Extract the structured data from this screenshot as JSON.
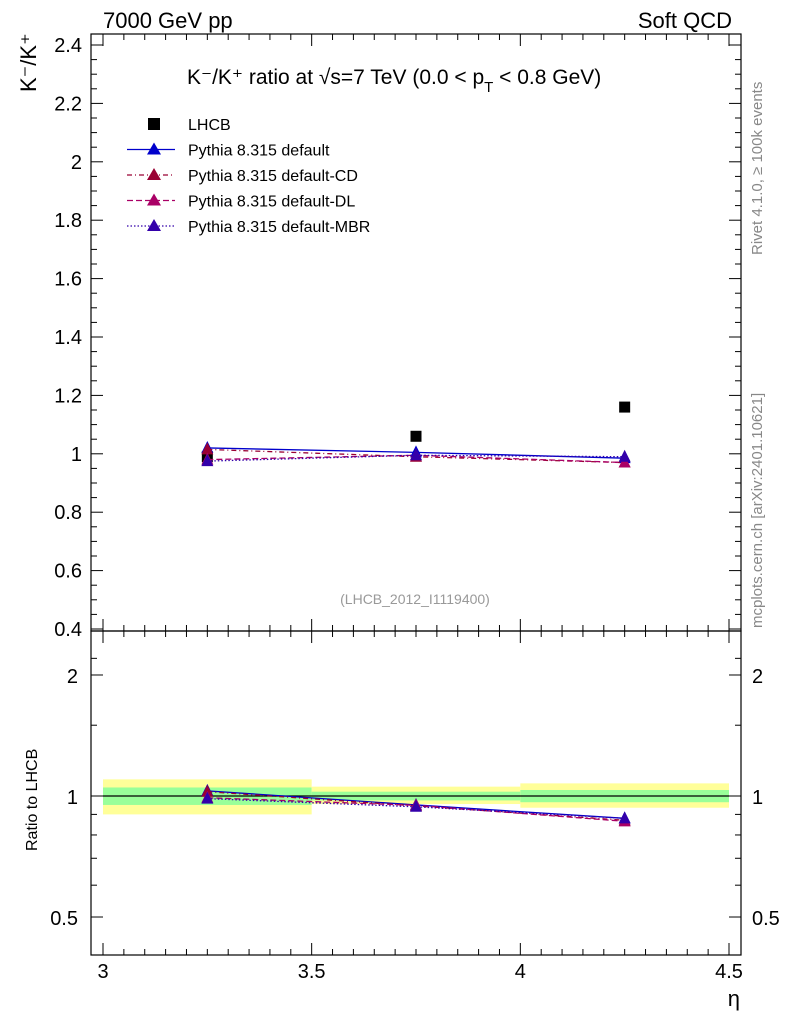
{
  "header": {
    "left_label": "7000 GeV pp",
    "right_label": "Soft QCD"
  },
  "side_labels": {
    "rivet": "Rivet 4.1.0, ≥ 100k events",
    "mcplots": "mcplots.cern.ch [arXiv:2401.10621]"
  },
  "colors": {
    "data": "#000000",
    "default": "#0000cc",
    "default_cd": "#990033",
    "default_dl": "#aa0066",
    "default_mbr": "#3300aa",
    "band_inner": "#99ff99",
    "band_outer": "#ffff99"
  },
  "chart_data": [
    {
      "type": "scatter",
      "title": "K⁻/K⁺ ratio at √s=7 TeV (0.0 < p_T < 0.8 GeV)",
      "title_parts": {
        "main": "K⁻/K⁺ ratio at √s=7 TeV (0.0 < p",
        "sub": "T",
        "end": " < 0.8 GeV)"
      },
      "ylabel": "K⁻/K⁺",
      "xlabel": "η",
      "xlim": [
        3.0,
        4.5
      ],
      "ylim": [
        0.4,
        2.45
      ],
      "y_ticks": [
        0.4,
        0.6,
        0.8,
        1,
        1.2,
        1.4,
        1.6,
        1.8,
        2,
        2.2,
        2.4
      ],
      "y_tick_labels": [
        "0.4",
        "0.6",
        "0.8",
        "1",
        "1.2",
        "1.4",
        "1.6",
        "1.8",
        "2",
        "2.2",
        "2.4"
      ],
      "watermark": "(LHCB_2012_I1119400)",
      "legend": [
        {
          "key": "data",
          "label": "LHCB"
        },
        {
          "key": "default",
          "label": "Pythia 8.315 default"
        },
        {
          "key": "default_cd",
          "label": "Pythia 8.315 default-CD"
        },
        {
          "key": "default_dl",
          "label": "Pythia 8.315 default-DL"
        },
        {
          "key": "default_mbr",
          "label": "Pythia 8.315 default-MBR"
        }
      ],
      "x": [
        3.25,
        3.75,
        4.25
      ],
      "series": [
        {
          "key": "data",
          "name": "LHCB",
          "style": "points",
          "values": [
            0.99,
            1.06,
            1.16
          ]
        },
        {
          "key": "default",
          "name": "Pythia 8.315 default",
          "style": "solid",
          "values": [
            1.02,
            1.005,
            0.985
          ],
          "errors": [
            0.02,
            0.015,
            0.02
          ]
        },
        {
          "key": "default_cd",
          "name": "Pythia 8.315 default-CD",
          "style": "dashdot",
          "values": [
            1.015,
            0.99,
            0.97
          ]
        },
        {
          "key": "default_dl",
          "name": "Pythia 8.315 default-DL",
          "style": "dashed",
          "values": [
            0.98,
            0.995,
            0.97
          ]
        },
        {
          "key": "default_mbr",
          "name": "Pythia 8.315 default-MBR",
          "style": "dotted",
          "values": [
            0.975,
            0.995,
            0.99
          ]
        }
      ]
    },
    {
      "type": "line",
      "ylabel": "Ratio to LHCB",
      "xlabel": "η",
      "xlim": [
        3.0,
        4.5
      ],
      "ylim": [
        0.4,
        2.35
      ],
      "y_ticks": [
        0.5,
        1,
        2
      ],
      "y_tick_labels": [
        "0.5",
        "1",
        "2"
      ],
      "x_ticks": [
        3,
        3.5,
        4,
        4.5
      ],
      "x_tick_labels": [
        "3",
        "3.5",
        "4",
        "4.5"
      ],
      "bins": [
        [
          3.0,
          3.5
        ],
        [
          3.5,
          4.0
        ],
        [
          4.0,
          4.5
        ]
      ],
      "band_inner": [
        [
          0.95,
          1.05
        ],
        [
          0.975,
          1.025
        ],
        [
          0.965,
          1.035
        ]
      ],
      "band_outer": [
        [
          0.9,
          1.1
        ],
        [
          0.955,
          1.055
        ],
        [
          0.935,
          1.075
        ]
      ],
      "x": [
        3.25,
        3.75,
        4.25
      ],
      "series": [
        {
          "key": "default",
          "name": "Pythia 8.315 default",
          "style": "solid",
          "values": [
            1.03,
            0.95,
            0.88
          ]
        },
        {
          "key": "default_cd",
          "name": "Pythia 8.315 default-CD",
          "style": "dashdot",
          "values": [
            1.025,
            0.945,
            0.87
          ]
        },
        {
          "key": "default_dl",
          "name": "Pythia 8.315 default-DL",
          "style": "dashed",
          "values": [
            0.99,
            0.948,
            0.865
          ]
        },
        {
          "key": "default_mbr",
          "name": "Pythia 8.315 default-MBR",
          "style": "dotted",
          "values": [
            0.985,
            0.94,
            0.88
          ]
        }
      ]
    }
  ]
}
